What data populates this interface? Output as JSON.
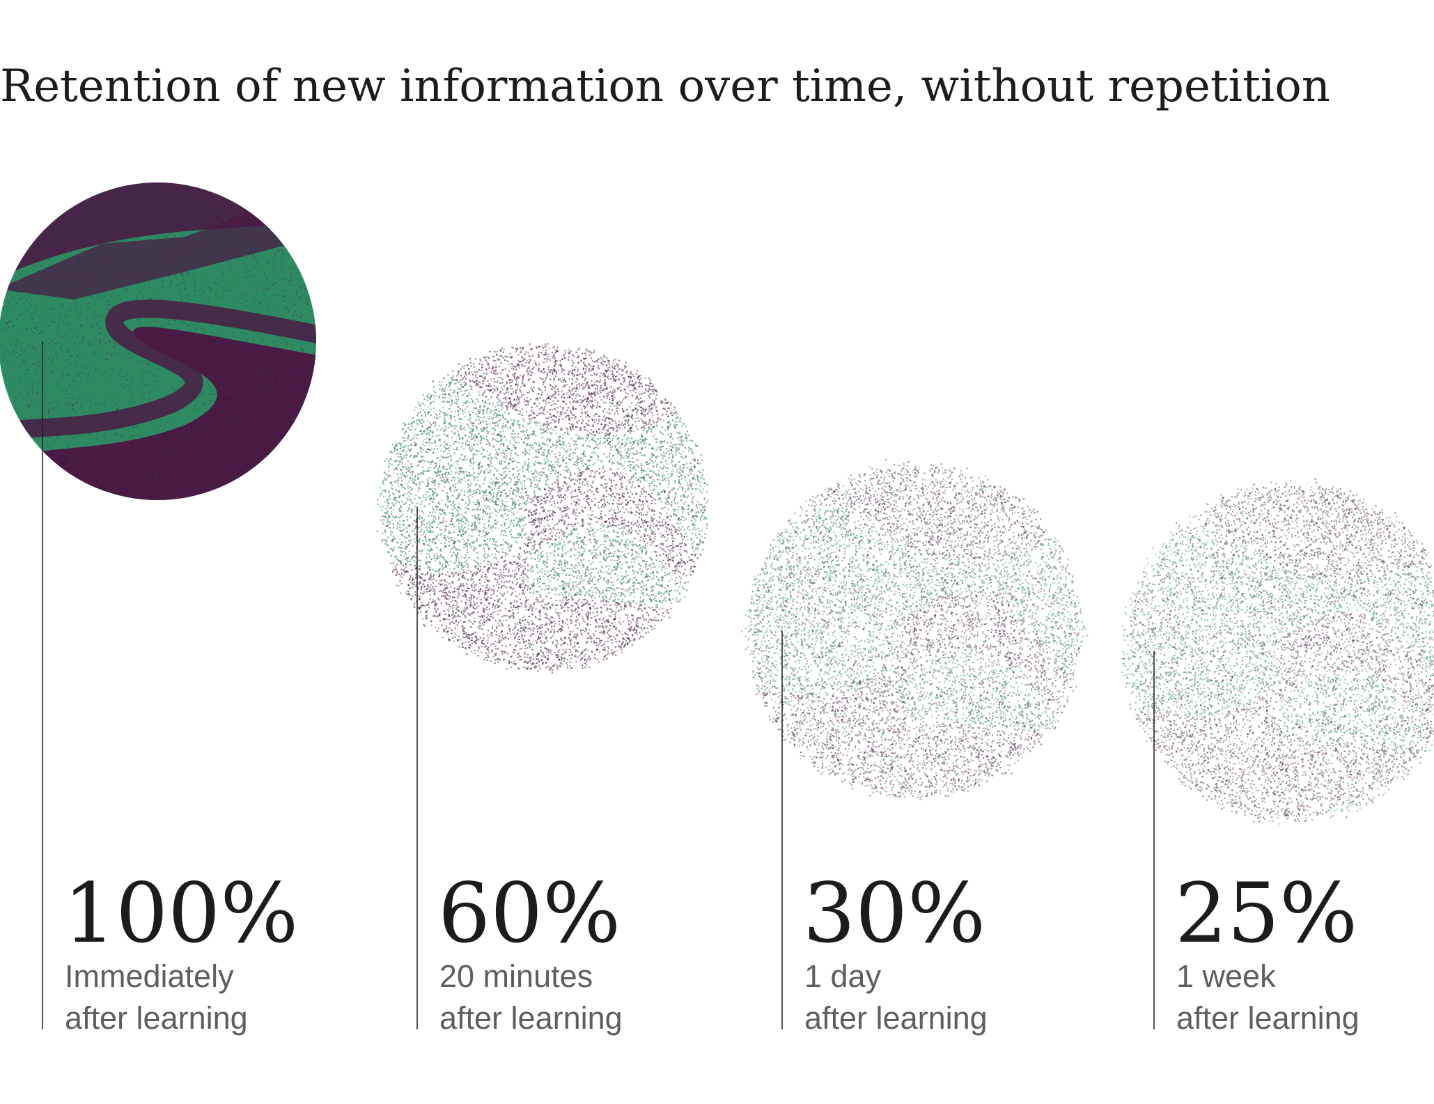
{
  "chart_data": {
    "type": "bar",
    "title": "Retention of new information over time, without repetition",
    "categories": [
      [
        "Immediately",
        "after learning"
      ],
      [
        "20 minutes",
        "after learning"
      ],
      [
        "1 day",
        "after learning"
      ],
      [
        "1 week",
        "after learning"
      ]
    ],
    "values": [
      100,
      60,
      30,
      25
    ],
    "value_labels": [
      "100%",
      "60%",
      "30%",
      "25%"
    ],
    "xlabel": "",
    "ylabel": "",
    "ylim": [
      0,
      100
    ],
    "grid": false,
    "legend": "none",
    "colors": {
      "green": "#2e8a62",
      "purple": "#4a1a45",
      "gray": "#555555",
      "text": "#1c1c1c",
      "subtext": "#5e5e5e"
    }
  }
}
